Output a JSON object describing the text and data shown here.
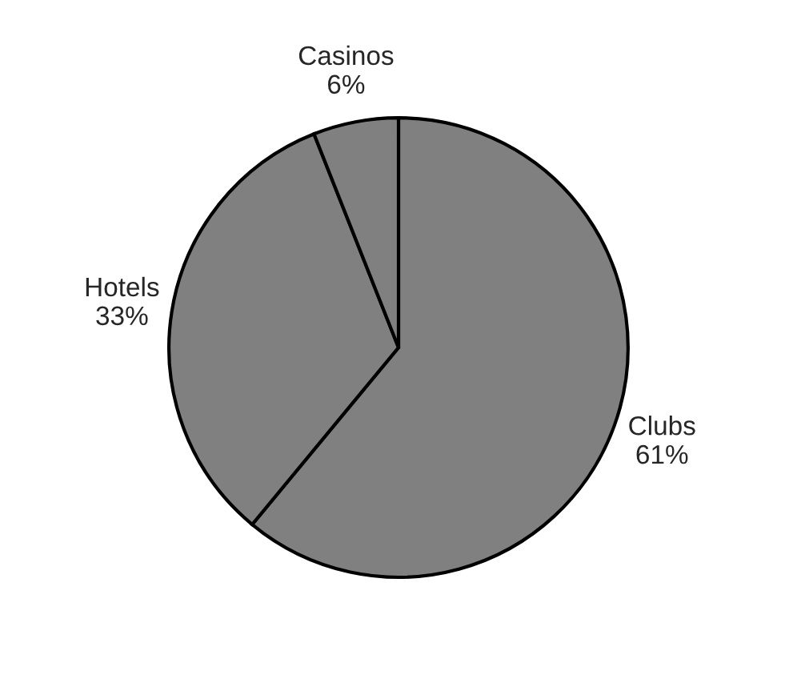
{
  "chart_data": {
    "type": "pie",
    "categories": [
      "Clubs",
      "Hotels",
      "Casinos"
    ],
    "values": [
      61,
      33,
      6
    ],
    "colors": [
      "#808080",
      "#808080",
      "#808080"
    ],
    "value_labels": [
      "61%",
      "33%",
      "6%"
    ],
    "legend": false
  }
}
